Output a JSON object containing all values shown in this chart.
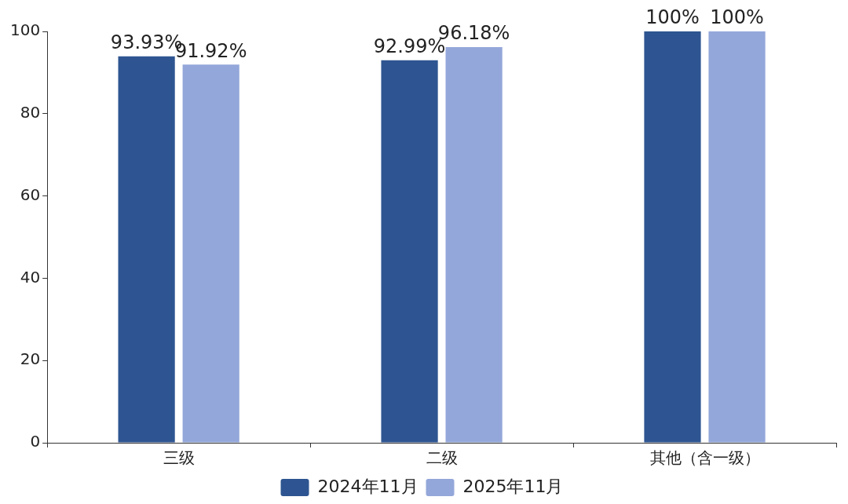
{
  "chart_data": {
    "type": "bar",
    "categories": [
      "三级",
      "二级",
      "其他（含一级）"
    ],
    "series": [
      {
        "name": "2024年11月",
        "color": "#2e5591",
        "values": [
          93.93,
          92.99,
          100
        ],
        "value_labels": [
          "93.93%",
          "92.99%",
          "100%"
        ]
      },
      {
        "name": "2025年11月",
        "color": "#94a7da",
        "values": [
          91.92,
          96.18,
          100
        ],
        "value_labels": [
          "91.92%",
          "96.18%",
          "100%"
        ]
      }
    ],
    "ylim": [
      0,
      100
    ],
    "yticks": [
      0,
      20,
      40,
      60,
      80,
      100
    ],
    "grid": false,
    "legend": "bottom"
  }
}
